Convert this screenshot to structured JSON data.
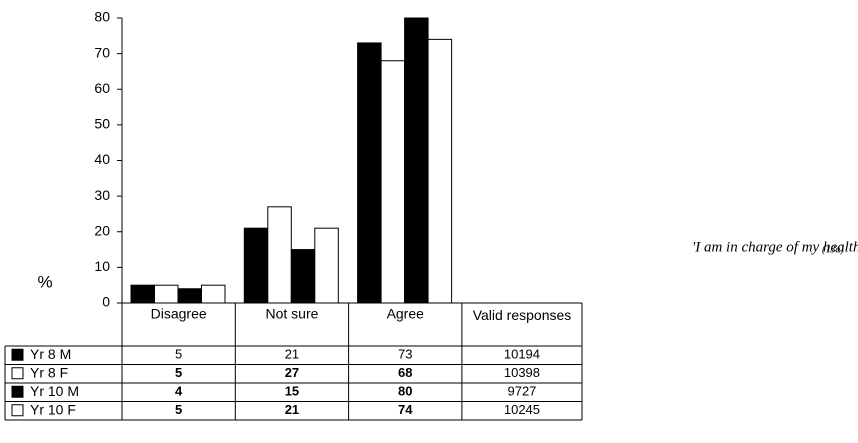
{
  "chart_data": {
    "type": "bar",
    "ylabel": "%",
    "categories": [
      "Disagree",
      "Not sure",
      "Agree"
    ],
    "series": [
      {
        "name": "Yr 8 M",
        "color": "#000000",
        "values": [
          5,
          21,
          73
        ]
      },
      {
        "name": "Yr 8 F",
        "color": "#ffffff",
        "values": [
          5,
          27,
          68
        ]
      },
      {
        "name": "Yr 10 M",
        "color": "#000000",
        "values": [
          4,
          15,
          80
        ]
      },
      {
        "name": "Yr 10 F",
        "color": "#ffffff",
        "values": [
          5,
          21,
          74
        ]
      }
    ],
    "valid_responses": {
      "label": "Valid responses",
      "values": [
        10194,
        10398,
        9727,
        10245
      ]
    },
    "ylim": [
      0,
      80
    ],
    "yticks": [
      0,
      10,
      20,
      30,
      40,
      50,
      60,
      70,
      80
    ],
    "annotation": "'I am in charge of my health\"",
    "annotation_ref": "(13a)"
  }
}
